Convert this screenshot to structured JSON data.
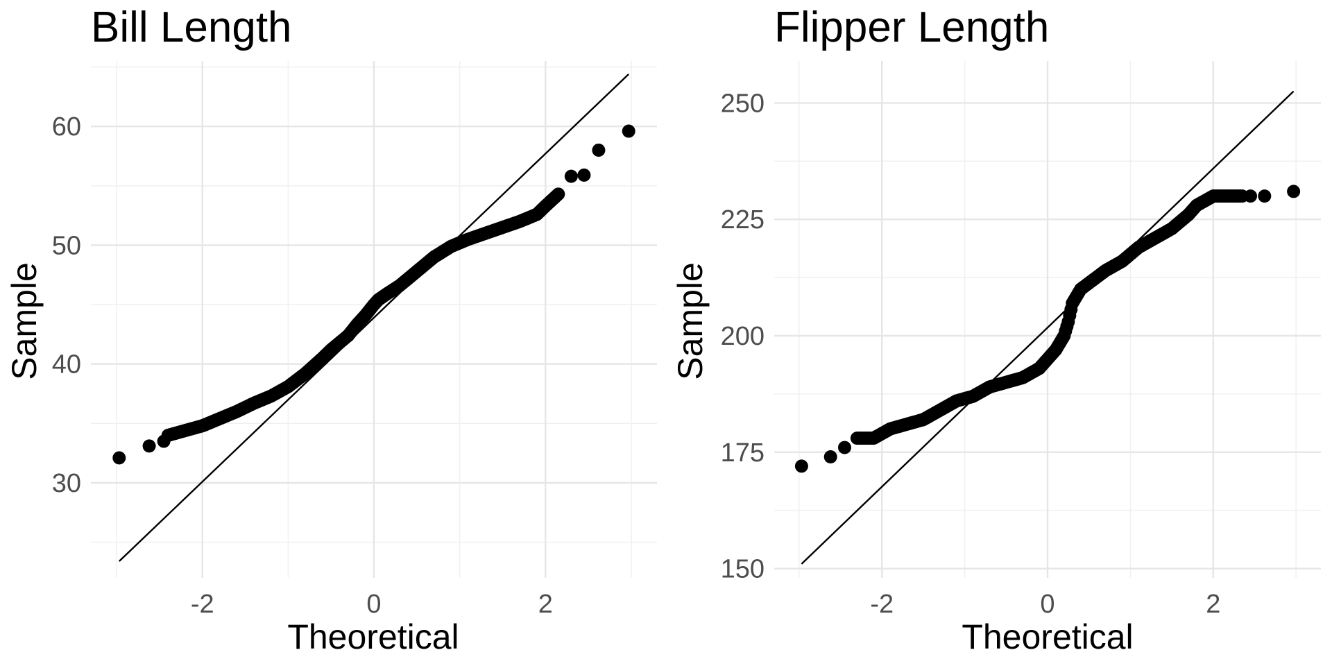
{
  "chart_data": [
    {
      "type": "scatter",
      "subtype": "qq-plot",
      "title": "Bill Length",
      "xlabel": "Theoretical",
      "ylabel": "Sample",
      "xlim": [
        -3.3,
        3.3
      ],
      "ylim": [
        22,
        65.5
      ],
      "x_major_ticks": [
        -2,
        0,
        2
      ],
      "x_tick_labels": [
        "-2",
        "0",
        "2"
      ],
      "x_minor_ticks": [
        -3,
        -1,
        1,
        3
      ],
      "y_major_ticks": [
        30,
        40,
        50,
        60
      ],
      "y_tick_labels": [
        "30",
        "40",
        "50",
        "60"
      ],
      "y_minor_ticks": [
        25,
        35,
        45,
        55,
        65
      ],
      "grid": true,
      "point_color": "#000000",
      "reference_line": {
        "x": [
          -2.97,
          2.97
        ],
        "y": [
          23.4,
          64.4
        ],
        "color": "#000000"
      },
      "quantile_curve": {
        "x": [
          -2.4,
          -2.2,
          -2.0,
          -1.8,
          -1.6,
          -1.4,
          -1.2,
          -1.0,
          -0.8,
          -0.6,
          -0.5,
          -0.4,
          -0.3,
          -0.2,
          -0.1,
          0.0,
          0.05,
          0.15,
          0.3,
          0.5,
          0.7,
          0.9,
          1.1,
          1.3,
          1.5,
          1.7,
          1.9,
          2.0,
          2.15
        ],
        "y": [
          34.0,
          34.4,
          34.8,
          35.4,
          36.0,
          36.7,
          37.3,
          38.1,
          39.2,
          40.5,
          41.2,
          41.8,
          42.4,
          43.3,
          44.1,
          45.0,
          45.4,
          45.9,
          46.6,
          47.8,
          49.0,
          49.9,
          50.5,
          51.0,
          51.5,
          52.0,
          52.6,
          53.3,
          54.3
        ]
      },
      "outlier_points": {
        "x": [
          -2.97,
          -2.62,
          -2.45,
          2.3,
          2.45,
          2.62,
          2.97
        ],
        "y": [
          32.1,
          33.1,
          33.5,
          55.8,
          55.9,
          58.0,
          59.6
        ]
      }
    },
    {
      "type": "scatter",
      "subtype": "qq-plot",
      "title": "Flipper Length",
      "xlabel": "Theoretical",
      "ylabel": "Sample",
      "xlim": [
        -3.3,
        3.3
      ],
      "ylim": [
        148,
        259
      ],
      "x_major_ticks": [
        -2,
        0,
        2
      ],
      "x_tick_labels": [
        "-2",
        "0",
        "2"
      ],
      "x_minor_ticks": [
        -3,
        -1,
        1,
        3
      ],
      "y_major_ticks": [
        150,
        175,
        200,
        225,
        250
      ],
      "y_tick_labels": [
        "150",
        "175",
        "200",
        "225",
        "250"
      ],
      "y_minor_ticks": [
        162.5,
        187.5,
        212.5,
        237.5
      ],
      "grid": true,
      "point_color": "#000000",
      "reference_line": {
        "x": [
          -2.97,
          2.97
        ],
        "y": [
          151,
          252.5
        ],
        "color": "#000000"
      },
      "quantile_curve": {
        "x": [
          -2.3,
          -2.1,
          -1.9,
          -1.7,
          -1.5,
          -1.3,
          -1.1,
          -0.9,
          -0.7,
          -0.5,
          -0.3,
          -0.1,
          0.0,
          0.1,
          0.2,
          0.25,
          0.3,
          0.4,
          0.55,
          0.7,
          0.9,
          1.1,
          1.3,
          1.5,
          1.7,
          1.8,
          1.9,
          2.0,
          2.1,
          2.2,
          2.35
        ],
        "y": [
          178,
          178,
          180,
          181,
          182,
          184,
          186,
          187,
          189,
          190,
          191,
          193,
          195,
          197,
          200,
          203,
          207,
          210,
          212,
          214,
          216,
          219,
          221,
          223,
          226,
          228,
          229,
          230,
          230,
          230,
          230
        ]
      },
      "outlier_points": {
        "x": [
          -2.97,
          -2.62,
          -2.45,
          2.45,
          2.62,
          2.97
        ],
        "y": [
          172,
          174,
          176,
          230,
          230,
          231
        ]
      }
    }
  ]
}
